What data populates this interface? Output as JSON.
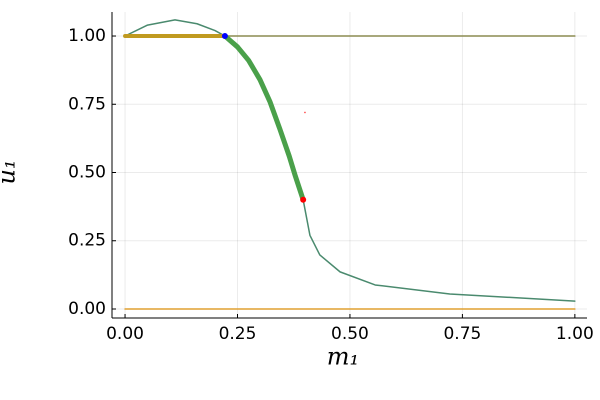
{
  "chart_data": {
    "type": "line",
    "x_label": "m₁",
    "y_label": "u₁",
    "xlim": [
      -0.029,
      1.027
    ],
    "ylim": [
      -0.033,
      1.088
    ],
    "xticks": [
      {
        "value": 0,
        "label": "0.00"
      },
      {
        "value": 0.25,
        "label": "0.25"
      },
      {
        "value": 0.5,
        "label": "0.50"
      },
      {
        "value": 0.75,
        "label": "0.75"
      },
      {
        "value": 1,
        "label": "1.00"
      }
    ],
    "yticks": [
      {
        "value": 0,
        "label": "0.00"
      },
      {
        "value": 0.25,
        "label": "0.25"
      },
      {
        "value": 0.5,
        "label": "0.50"
      },
      {
        "value": 0.75,
        "label": "0.75"
      },
      {
        "value": 1,
        "label": "1.00"
      }
    ],
    "grid": true,
    "series": [
      {
        "color": "#8c8c50",
        "width": 1.5,
        "x": [
          0,
          1
        ],
        "values": [
          1,
          1
        ]
      },
      {
        "color": "#e0a030",
        "width": 1.5,
        "x": [
          0,
          1
        ],
        "values": [
          0,
          0
        ]
      },
      {
        "color": "#4a8a6e",
        "width": 1.5,
        "x": [
          0,
          0.05,
          0.111,
          0.16,
          0.2,
          0.222,
          0.25,
          0.275,
          0.3,
          0.322,
          0.344,
          0.365,
          0.378,
          0.396,
          0.411,
          0.433,
          0.478,
          0.556,
          0.722,
          1.0
        ],
        "values": [
          1.0,
          1.04,
          1.059,
          1.045,
          1.02,
          1.0,
          0.96,
          0.91,
          0.84,
          0.76,
          0.66,
          0.56,
          0.49,
          0.4,
          0.27,
          0.198,
          0.136,
          0.088,
          0.055,
          0.029
        ]
      },
      {
        "color": "#4aa04a",
        "width": 5,
        "x": [
          0.222,
          0.25,
          0.275,
          0.3,
          0.322,
          0.344,
          0.365,
          0.378,
          0.396
        ],
        "values": [
          1.0,
          0.96,
          0.91,
          0.84,
          0.76,
          0.66,
          0.56,
          0.49,
          0.4
        ]
      },
      {
        "color": "#c09a20",
        "width": 4,
        "x": [
          0,
          0.222
        ],
        "values": [
          1,
          1
        ]
      },
      {
        "color": "#0000ff",
        "marker_size": 3,
        "x": [
          0.222
        ],
        "values": [
          1.0
        ]
      },
      {
        "color": "#ff0000",
        "marker_size": 3,
        "x": [
          0.396
        ],
        "values": [
          0.4
        ]
      },
      {
        "color": "#ff4040",
        "marker_size": 0.8,
        "x": [
          0.4
        ],
        "values": [
          0.72
        ]
      }
    ]
  }
}
